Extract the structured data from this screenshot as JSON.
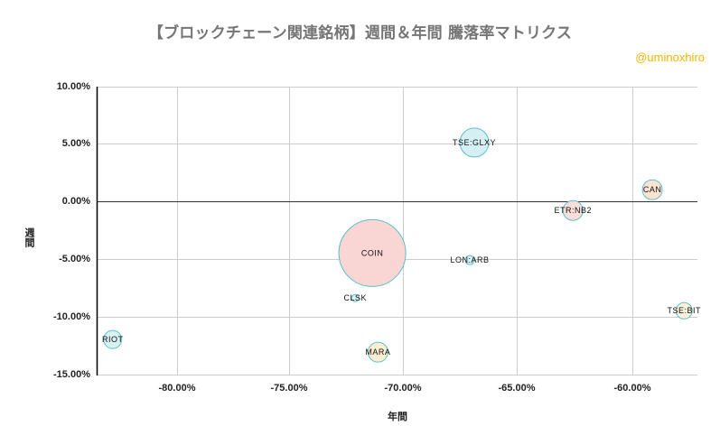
{
  "title": "【ブロックチェーン関連銘柄】週間＆年間 騰落率マトリクス",
  "watermark": "@uminoxhiro",
  "axes": {
    "x_label": "年間",
    "y_label": "週間",
    "x_ticks": [
      "-80.00%",
      "-75.00%",
      "-70.00%",
      "-65.00%",
      "-60.00%"
    ],
    "y_ticks": [
      "10.00%",
      "5.00%",
      "0.00%",
      "-5.00%",
      "-10.00%",
      "-15.00%"
    ]
  },
  "colors": {
    "bubble_stroke": "#5bc0c8",
    "gridline": "#cccccc",
    "axis": "#000000",
    "title": "#757575",
    "watermark": "#f0b400"
  },
  "chart_data": {
    "type": "bubble",
    "title": "【ブロックチェーン関連銘柄】週間＆年間 騰落率マトリクス",
    "xlabel": "年間",
    "ylabel": "週間",
    "xlim": [
      -83.5,
      -57.1
    ],
    "ylim": [
      -15,
      10
    ],
    "x_ticks": [
      -80,
      -75,
      -70,
      -65,
      -60
    ],
    "y_ticks": [
      10,
      5,
      0,
      -5,
      -10,
      -15
    ],
    "grid": true,
    "legend": "none",
    "points": [
      {
        "label": "RIOT",
        "x": -82.8,
        "y": -12.0,
        "size": 10,
        "fill": "#d9f1f1"
      },
      {
        "label": "COIN",
        "x": -71.35,
        "y": -4.5,
        "size": 37,
        "fill": "#f9d6d3"
      },
      {
        "label": "CLSK",
        "x": -72.1,
        "y": -8.4,
        "size": 4,
        "fill": "#d9f1f1"
      },
      {
        "label": "MARA",
        "x": -71.1,
        "y": -13.1,
        "size": 11,
        "fill": "#fbeed2"
      },
      {
        "label": "LON:ARB",
        "x": -67.05,
        "y": -5.1,
        "size": 5,
        "fill": "#d9f1f1"
      },
      {
        "label": "TSE:GLXY",
        "x": -66.85,
        "y": 5.1,
        "size": 16,
        "fill": "#d6eff2"
      },
      {
        "label": "ETR:NB2",
        "x": -62.5,
        "y": -0.8,
        "size": 11,
        "fill": "#f9dedb"
      },
      {
        "label": "CAN",
        "x": -59.0,
        "y": 1.0,
        "size": 11,
        "fill": "#fbe3d2"
      },
      {
        "label": "TSE:BIT",
        "x": -57.6,
        "y": -9.5,
        "size": 9,
        "fill": "#fbf1dc"
      }
    ]
  }
}
